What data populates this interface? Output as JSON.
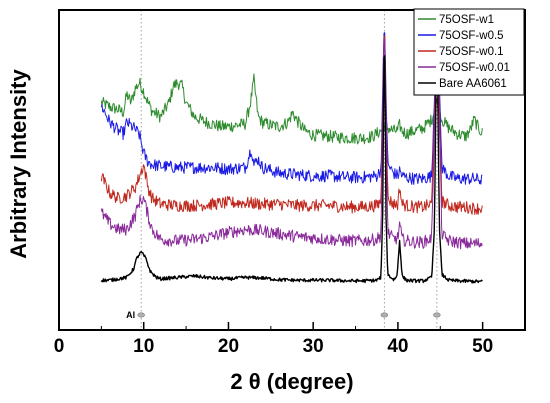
{
  "chart_data": {
    "type": "line",
    "xlabel": "2 θ (degree)",
    "ylabel": "Arbitrary Intensity",
    "xlim": [
      0,
      55
    ],
    "ylim": [
      0,
      1
    ],
    "grid": false,
    "legend_position": "top-right",
    "x_ticks": [
      "0",
      "10",
      "20",
      "30",
      "40",
      "50"
    ],
    "x_tick_values": [
      0,
      10,
      20,
      30,
      40,
      50
    ],
    "reference_lines": [
      9.7,
      38.4,
      44.6
    ],
    "annotations": [
      {
        "text": "Al",
        "x": 9.7
      }
    ],
    "markers_x": [
      9.7,
      38.4,
      44.6
    ],
    "series": [
      {
        "name": "75OSF-w1",
        "color": "#2e8b2e",
        "baseline": 0.58,
        "x": [
          5,
          6,
          7,
          7.6,
          8,
          8.5,
          9,
          9.5,
          10,
          10.5,
          11,
          12,
          13,
          13.5,
          14,
          14.5,
          15,
          16,
          17,
          18,
          19,
          20,
          21,
          22,
          22.6,
          23,
          23.5,
          24,
          25,
          26,
          27,
          27.6,
          28,
          29,
          30,
          32,
          34,
          36,
          37,
          38,
          38.4,
          38.8,
          39.5,
          40,
          40.2,
          40.5,
          41,
          42,
          43,
          44,
          44.6,
          45.2,
          46,
          47,
          48,
          48.5,
          49,
          49.5,
          50
        ],
        "y": [
          0.7,
          0.685,
          0.675,
          0.665,
          0.73,
          0.7,
          0.75,
          0.77,
          0.74,
          0.7,
          0.67,
          0.65,
          0.7,
          0.76,
          0.77,
          0.76,
          0.7,
          0.65,
          0.635,
          0.625,
          0.615,
          0.615,
          0.62,
          0.625,
          0.7,
          0.78,
          0.65,
          0.63,
          0.62,
          0.615,
          0.63,
          0.665,
          0.64,
          0.6,
          0.585,
          0.58,
          0.575,
          0.575,
          0.58,
          0.6,
          0.62,
          0.61,
          0.6,
          0.6,
          0.62,
          0.6,
          0.59,
          0.6,
          0.61,
          0.64,
          0.7,
          0.64,
          0.61,
          0.59,
          0.58,
          0.6,
          0.64,
          0.61,
          0.59
        ]
      },
      {
        "name": "75OSF-w0.5",
        "color": "#1a1ae6",
        "baseline": 0.42,
        "x": [
          5,
          6,
          7,
          7.6,
          8,
          9,
          9.5,
          10,
          10.5,
          11,
          12,
          14,
          16,
          18,
          20,
          22,
          22.7,
          23,
          23.5,
          24,
          25,
          26,
          28,
          30,
          32,
          34,
          36,
          37.5,
          38,
          38.4,
          38.8,
          39.5,
          40,
          40.2,
          40.5,
          41,
          42,
          43,
          44,
          44.6,
          45.2,
          46,
          47,
          48,
          49,
          50
        ],
        "y": [
          0.69,
          0.63,
          0.6,
          0.59,
          0.63,
          0.605,
          0.585,
          0.52,
          0.49,
          0.48,
          0.475,
          0.47,
          0.47,
          0.47,
          0.465,
          0.47,
          0.54,
          0.48,
          0.5,
          0.47,
          0.46,
          0.45,
          0.445,
          0.44,
          0.44,
          0.435,
          0.435,
          0.44,
          0.46,
          1.0,
          0.48,
          0.45,
          0.44,
          0.46,
          0.44,
          0.435,
          0.43,
          0.43,
          0.44,
          1.0,
          0.47,
          0.44,
          0.43,
          0.43,
          0.43,
          0.425
        ]
      },
      {
        "name": "75OSF-w0.1",
        "color": "#c0281e",
        "baseline": 0.33,
        "x": [
          5,
          6,
          7,
          8,
          9,
          9.5,
          10,
          10.5,
          11,
          12,
          14,
          16,
          18,
          20,
          22,
          24,
          26,
          28,
          30,
          32,
          34,
          36,
          37.5,
          38,
          38.4,
          38.8,
          39.5,
          40,
          40.2,
          40.5,
          41,
          42,
          43,
          44,
          44.6,
          45.2,
          46,
          47,
          48,
          49,
          50
        ],
        "y": [
          0.44,
          0.38,
          0.36,
          0.37,
          0.4,
          0.44,
          0.48,
          0.4,
          0.36,
          0.34,
          0.335,
          0.335,
          0.34,
          0.345,
          0.345,
          0.34,
          0.34,
          0.335,
          0.335,
          0.335,
          0.33,
          0.33,
          0.335,
          0.35,
          1.0,
          0.36,
          0.34,
          0.34,
          0.4,
          0.34,
          0.335,
          0.33,
          0.33,
          0.34,
          1.0,
          0.35,
          0.335,
          0.33,
          0.33,
          0.325,
          0.325
        ]
      },
      {
        "name": "75OSF-w0.01",
        "color": "#8a2a9a",
        "baseline": 0.2,
        "x": [
          5,
          6,
          7,
          8,
          9,
          9.5,
          10,
          10.5,
          11,
          12,
          14,
          16,
          18,
          20,
          22,
          24,
          26,
          28,
          30,
          32,
          34,
          36,
          37.5,
          38,
          38.4,
          38.8,
          39.5,
          40,
          40.2,
          40.5,
          41,
          42,
          43,
          44,
          44.6,
          45.2,
          46,
          47,
          48,
          49,
          50
        ],
        "y": [
          0.31,
          0.27,
          0.25,
          0.25,
          0.3,
          0.35,
          0.36,
          0.3,
          0.25,
          0.215,
          0.21,
          0.215,
          0.225,
          0.24,
          0.25,
          0.245,
          0.235,
          0.225,
          0.22,
          0.215,
          0.21,
          0.21,
          0.215,
          0.23,
          1.0,
          0.24,
          0.215,
          0.22,
          0.27,
          0.215,
          0.21,
          0.205,
          0.205,
          0.22,
          1.0,
          0.23,
          0.21,
          0.205,
          0.2,
          0.2,
          0.2
        ]
      },
      {
        "name": "Bare AA6061",
        "color": "#000000",
        "baseline": 0.07,
        "x": [
          5,
          6,
          7,
          8,
          8.8,
          9.2,
          9.7,
          10.2,
          10.8,
          11.5,
          12,
          14,
          16,
          18,
          20,
          22,
          24,
          26,
          28,
          30,
          32,
          34,
          36,
          37.5,
          38,
          38.2,
          38.4,
          38.6,
          38.8,
          39.5,
          39.9,
          40.2,
          40.5,
          41,
          42,
          43,
          44,
          44.3,
          44.6,
          44.9,
          45.2,
          46,
          47,
          48,
          49,
          50
        ],
        "y": [
          0.07,
          0.07,
          0.075,
          0.08,
          0.11,
          0.15,
          0.17,
          0.15,
          0.1,
          0.08,
          0.075,
          0.08,
          0.085,
          0.078,
          0.075,
          0.08,
          0.078,
          0.072,
          0.07,
          0.07,
          0.07,
          0.068,
          0.068,
          0.07,
          0.08,
          0.3,
          1.0,
          0.3,
          0.09,
          0.072,
          0.085,
          0.21,
          0.085,
          0.07,
          0.068,
          0.068,
          0.08,
          0.25,
          1.0,
          0.25,
          0.09,
          0.07,
          0.068,
          0.067,
          0.066,
          0.065
        ]
      }
    ]
  }
}
